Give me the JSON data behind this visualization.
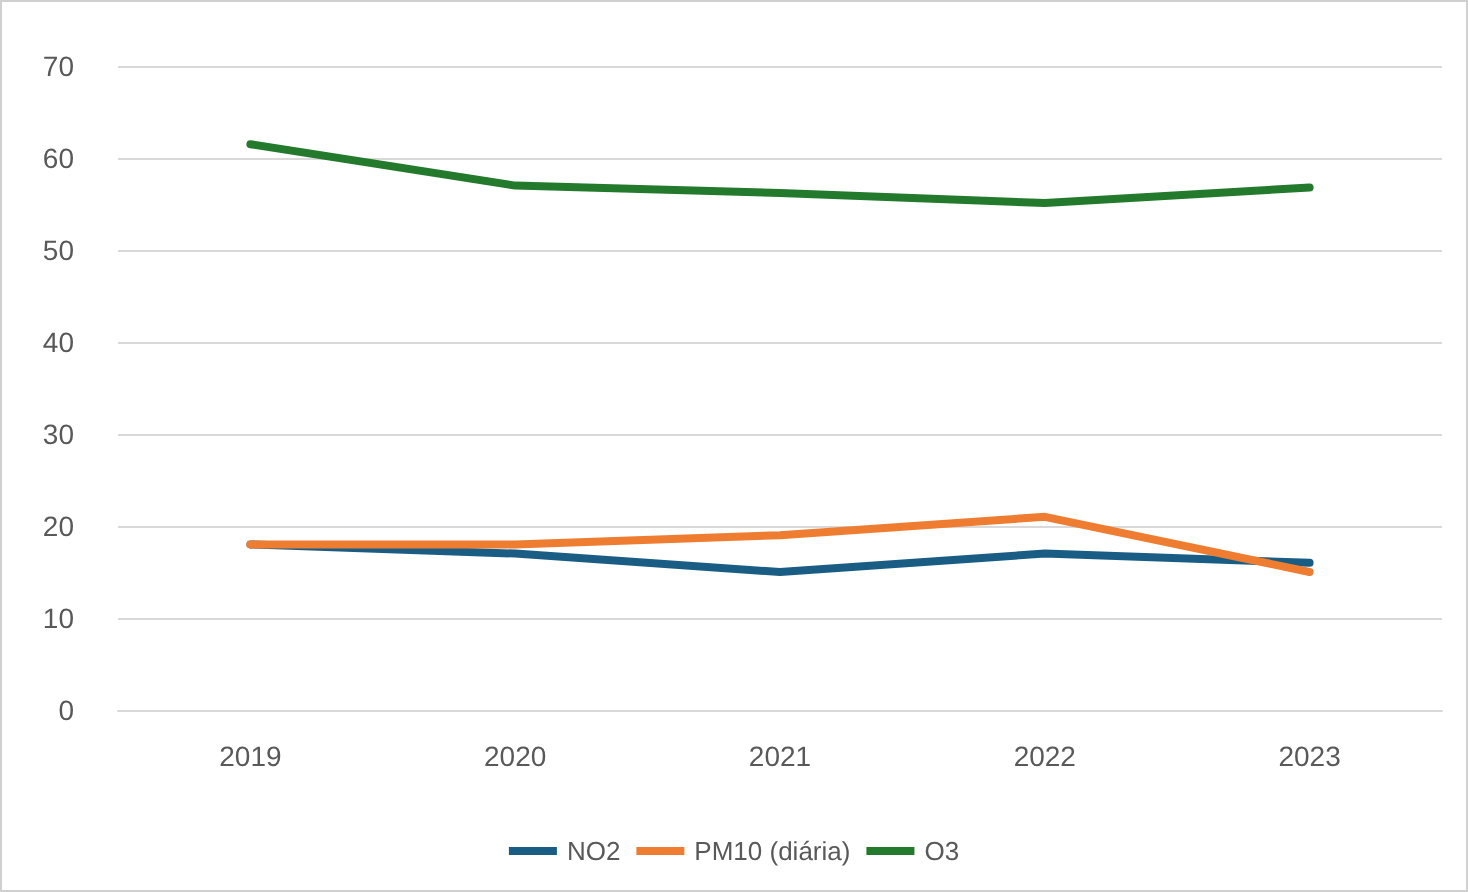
{
  "chart_data": {
    "type": "line",
    "categories": [
      "2019",
      "2020",
      "2021",
      "2022",
      "2023"
    ],
    "series": [
      {
        "name": "NO2",
        "color": "#1a5d84",
        "values": [
          18,
          17,
          15,
          17,
          16
        ]
      },
      {
        "name": "PM10 (diária)",
        "color": "#ee7d31",
        "values": [
          18,
          18,
          19,
          21,
          15
        ]
      },
      {
        "name": "O3",
        "color": "#247a2c",
        "values": [
          61.5,
          57,
          56.2,
          55.1,
          56.8
        ]
      }
    ],
    "ylim": [
      0,
      70
    ],
    "yticks": [
      0,
      10,
      20,
      30,
      40,
      50,
      60,
      70
    ],
    "grid": "y",
    "legend": "bottom",
    "marker": "none",
    "line_style": "solid"
  }
}
